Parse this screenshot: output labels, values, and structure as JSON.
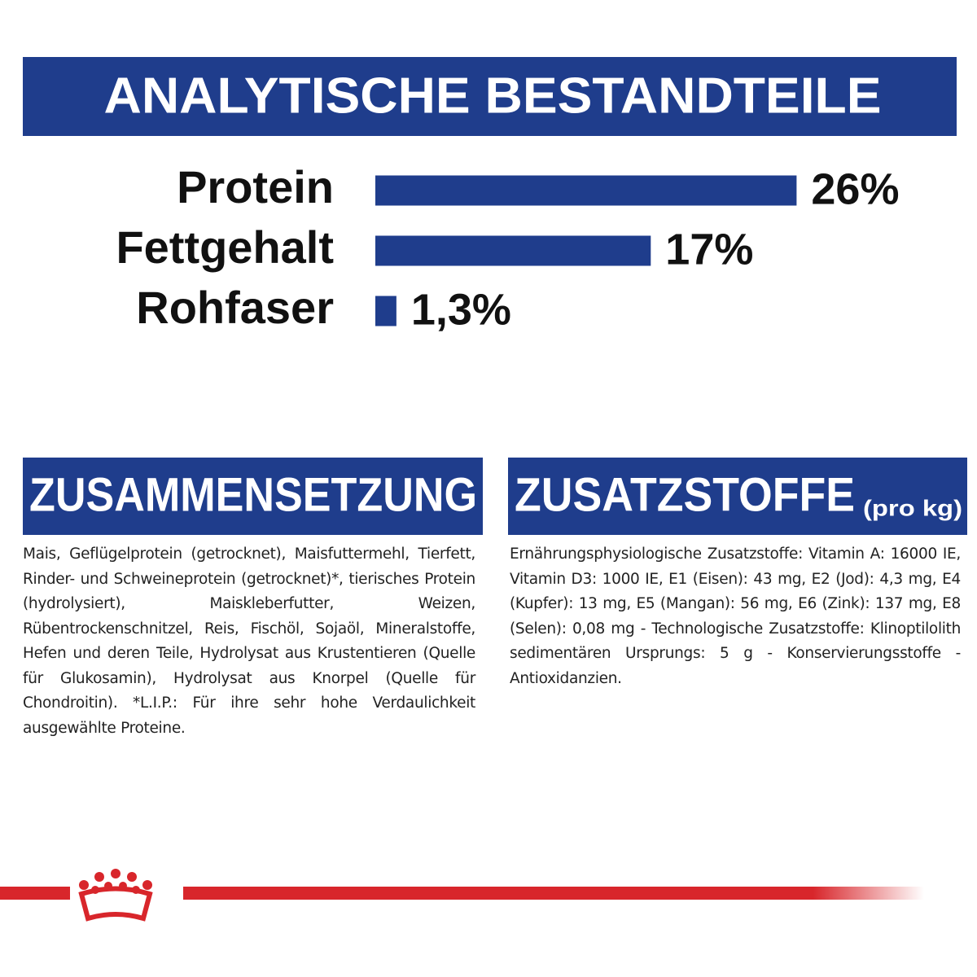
{
  "header": {
    "title": "ANALYTISCHE BESTANDTEILE"
  },
  "chart_data": {
    "type": "bar",
    "orientation": "horizontal",
    "color": "#1f3d8c",
    "categories": [
      "Protein",
      "Fettgehalt",
      "Rohfaser"
    ],
    "values": [
      26,
      17,
      1.3
    ],
    "value_labels": [
      "26%",
      "17%",
      "1,3%"
    ]
  },
  "composition": {
    "title": "ZUSAMMENSETZUNG",
    "text": "Mais, Geflügelprotein (getrocknet), Maisfuttermehl, Tierfett, Rinder- und Schweineprotein (getrocknet)*, tierisches Protein (hydrolysiert), Maiskleberfutter, Weizen, Rübentrockenschnitzel, Reis, Fischöl, Sojaöl, Mineralstoffe, Hefen und deren Teile, Hydrolysat aus Krustentieren (Quelle für Glukosamin), Hydrolysat aus Knorpel (Quelle für Chondroitin). *L.I.P.: Für ihre sehr hohe Verdaulichkeit ausgewählte Proteine."
  },
  "additives": {
    "title": "ZUSATZSTOFFE",
    "unit": "(pro kg)",
    "text": "Ernährungsphysiologische Zusatzstoffe: Vitamin A: 16000 IE, Vitamin D3: 1000 IE, E1 (Eisen): 43 mg, E2 (Jod): 4,3 mg, E4 (Kupfer): 13 mg, E5 (Mangan): 56 mg, E6 (Zink): 137 mg, E8 (Selen): 0,08 mg - Technologische Zusatzstoffe: Klinoptilolith sedimentären Ursprungs: 5 g - Konservierungsstoffe - Antioxidanzien."
  }
}
